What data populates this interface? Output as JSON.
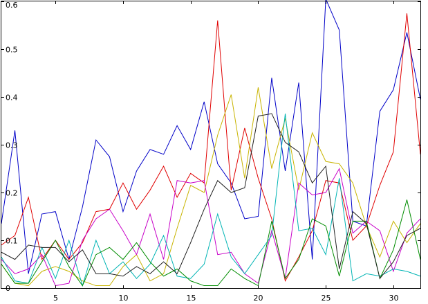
{
  "chart_data": {
    "type": "line",
    "title": "",
    "xlabel": "",
    "ylabel": "",
    "xlim": [
      1,
      32
    ],
    "ylim": [
      0,
      0.6
    ],
    "grid": false,
    "legend": "none",
    "x": [
      1,
      2,
      3,
      4,
      5,
      6,
      7,
      8,
      9,
      10,
      11,
      12,
      13,
      14,
      15,
      16,
      17,
      18,
      19,
      20,
      21,
      22,
      23,
      24,
      25,
      26,
      27,
      28,
      29,
      30,
      31,
      32
    ],
    "xticks": [
      {
        "value": 5,
        "label": "5"
      },
      {
        "value": 10,
        "label": "10"
      },
      {
        "value": 15,
        "label": "15"
      },
      {
        "value": 20,
        "label": "20"
      },
      {
        "value": 25,
        "label": "25"
      },
      {
        "value": 30,
        "label": "30"
      }
    ],
    "yticks": [
      {
        "value": 0,
        "label": "0"
      },
      {
        "value": 0.1,
        "label": "0.1"
      },
      {
        "value": 0.2,
        "label": "0.2"
      },
      {
        "value": 0.3,
        "label": "0.3"
      },
      {
        "value": 0.4,
        "label": "0.4"
      },
      {
        "value": 0.5,
        "label": "0.5"
      },
      {
        "value": 0.6,
        "label": "0.6"
      }
    ],
    "series": [
      {
        "color": "#0000c8",
        "values": [
          0.135,
          0.33,
          0.03,
          0.155,
          0.16,
          0.06,
          0.17,
          0.31,
          0.275,
          0.16,
          0.245,
          0.29,
          0.28,
          0.34,
          0.29,
          0.39,
          0.26,
          0.22,
          0.145,
          0.15,
          0.44,
          0.245,
          0.43,
          0.06,
          0.605,
          0.54,
          0.14,
          0.13,
          0.37,
          0.415,
          0.535,
          0.395
        ]
      },
      {
        "color": "#e00000",
        "values": [
          0.09,
          0.11,
          0.19,
          0.06,
          0.1,
          0.06,
          0.095,
          0.16,
          0.165,
          0.22,
          0.165,
          0.205,
          0.255,
          0.19,
          0.24,
          0.22,
          0.56,
          0.205,
          0.335,
          0.23,
          0.145,
          0.015,
          0.065,
          0.12,
          0.225,
          0.22,
          0.1,
          0.13,
          0.215,
          0.285,
          0.575,
          0.28
        ]
      },
      {
        "color": "#c8b400",
        "values": [
          0.05,
          0.01,
          0.005,
          0.035,
          0.045,
          0.035,
          0.015,
          0.005,
          0.005,
          0.045,
          0.07,
          0.015,
          0.03,
          0.125,
          0.215,
          0.2,
          0.32,
          0.405,
          0.23,
          0.42,
          0.25,
          0.355,
          0.205,
          0.325,
          0.265,
          0.26,
          0.22,
          0.13,
          0.065,
          0.14,
          0.095,
          0.135
        ]
      },
      {
        "color": "#c800c8",
        "values": [
          0.06,
          0.03,
          0.04,
          0.07,
          0.005,
          0.01,
          0.1,
          0.145,
          0.165,
          0.12,
          0.07,
          0.155,
          0.06,
          0.225,
          0.22,
          0.225,
          0.07,
          0.075,
          0.03,
          0.01,
          0.12,
          0.02,
          0.22,
          0.195,
          0.2,
          0.25,
          0.115,
          0.14,
          0.12,
          0.035,
          0.115,
          0.145
        ]
      },
      {
        "color": "#00b4b4",
        "values": [
          0.065,
          0.015,
          0.01,
          0.085,
          0.02,
          0.1,
          0.005,
          0.1,
          0.03,
          0.055,
          0.02,
          0.05,
          0.11,
          0.025,
          0.02,
          0.05,
          0.155,
          0.065,
          0.03,
          0.07,
          0.11,
          0.365,
          0.12,
          0.125,
          0.07,
          0.23,
          0.015,
          0.03,
          0.025,
          0.04,
          0.035,
          0.025
        ]
      },
      {
        "color": "#008c00",
        "values": [
          0.05,
          0.01,
          0.01,
          0.055,
          0.1,
          0.045,
          0.005,
          0.07,
          0.085,
          0.06,
          0.095,
          0.055,
          0.025,
          0.04,
          0.015,
          0.005,
          0.005,
          0.04,
          0.02,
          0.005,
          0.14,
          0.02,
          0.06,
          0.145,
          0.13,
          0.025,
          0.14,
          0.14,
          0.02,
          0.08,
          0.185,
          0.06
        ]
      },
      {
        "color": "#202020",
        "values": [
          0.075,
          0.06,
          0.09,
          0.085,
          0.085,
          0.055,
          0.08,
          0.03,
          0.03,
          0.025,
          0.045,
          0.03,
          0.055,
          0.03,
          0.095,
          0.165,
          0.225,
          0.2,
          0.21,
          0.36,
          0.365,
          0.305,
          0.285,
          0.22,
          0.255,
          0.04,
          0.16,
          0.135,
          0.02,
          0.055,
          0.11,
          0.125
        ]
      }
    ]
  }
}
